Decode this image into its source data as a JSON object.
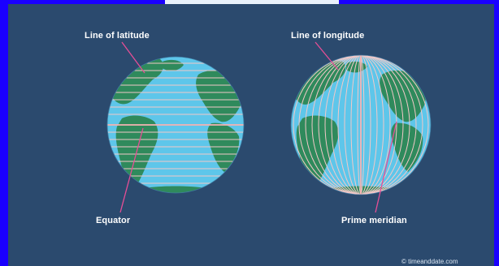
{
  "labels": {
    "latitude": "Line of latitude",
    "longitude": "Line of longitude",
    "equator": "Equator",
    "prime_meridian": "Prime meridian"
  },
  "credit": "© timeanddate.com",
  "colors": {
    "background": "#2b4a6e",
    "border": "#1a00ff",
    "ocean": "#5ec6ea",
    "land": "#2f8a5c",
    "grid_lines": "#f2c8c8",
    "pointer": "#e64e96",
    "text": "#ffffff"
  }
}
